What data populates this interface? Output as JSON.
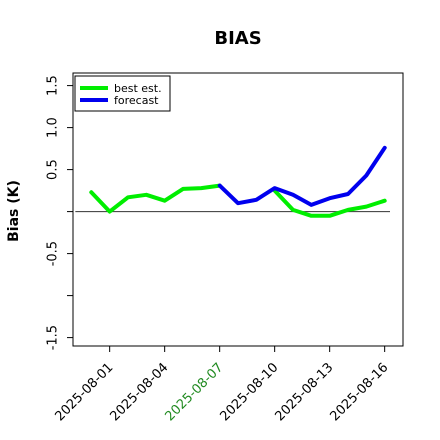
{
  "chart_data": {
    "type": "line",
    "title": "BIAS",
    "xlabel": "",
    "ylabel": "Bias (K)",
    "x": [
      "2025-07-31",
      "2025-08-01",
      "2025-08-02",
      "2025-08-03",
      "2025-08-04",
      "2025-08-05",
      "2025-08-06",
      "2025-08-07",
      "2025-08-08",
      "2025-08-09",
      "2025-08-10",
      "2025-08-11",
      "2025-08-12",
      "2025-08-13",
      "2025-08-14",
      "2025-08-15",
      "2025-08-16"
    ],
    "xticks": [
      {
        "label": "2025-08-01",
        "color": "#000000"
      },
      {
        "label": "2025-08-04",
        "color": "#000000"
      },
      {
        "label": "2025-08-07",
        "color": "#228b22"
      },
      {
        "label": "2025-08-10",
        "color": "#000000"
      },
      {
        "label": "2025-08-13",
        "color": "#000000"
      },
      {
        "label": "2025-08-16",
        "color": "#000000"
      }
    ],
    "yticks": [
      -1.5,
      -1.0,
      -0.5,
      0.0,
      0.5,
      1.0,
      1.5
    ],
    "ytick_labels": [
      "-1.5",
      "",
      "-0.5",
      "",
      "0.5",
      "1.0",
      "1.5"
    ],
    "ylim": [
      -1.6,
      1.65
    ],
    "xlim": [
      "2025-07-30",
      "2025-08-17"
    ],
    "reference_line": 0,
    "legend_position": "top-left",
    "series": [
      {
        "name": "best est.",
        "color": "#00ee00",
        "values": [
          0.23,
          0.0,
          0.17,
          0.2,
          0.13,
          0.27,
          0.28,
          0.31,
          null,
          null,
          0.25,
          0.02,
          -0.05,
          -0.05,
          0.02,
          0.06,
          0.13
        ]
      },
      {
        "name": "forecast",
        "color": "#0000ee",
        "values": [
          null,
          null,
          null,
          null,
          null,
          null,
          null,
          0.31,
          0.1,
          0.14,
          0.28,
          0.2,
          0.08,
          0.16,
          0.21,
          0.43,
          0.76
        ]
      }
    ]
  }
}
